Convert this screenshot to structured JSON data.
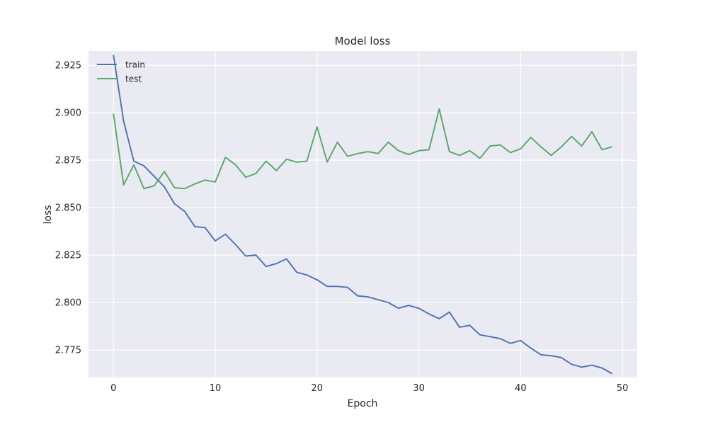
{
  "chart_data": {
    "type": "line",
    "title": "Model loss",
    "xlabel": "Epoch",
    "ylabel": "loss",
    "xlim": [
      -2.45,
      51.45
    ],
    "ylim": [
      2.7605,
      2.9325
    ],
    "x_ticks": [
      0,
      10,
      20,
      30,
      40,
      50
    ],
    "y_ticks": [
      2.775,
      2.8,
      2.825,
      2.85,
      2.875,
      2.9,
      2.925
    ],
    "grid": true,
    "legend_position": "top-left",
    "x": [
      0,
      1,
      2,
      3,
      4,
      5,
      6,
      7,
      8,
      9,
      10,
      11,
      12,
      13,
      14,
      15,
      16,
      17,
      18,
      19,
      20,
      21,
      22,
      23,
      24,
      25,
      26,
      27,
      28,
      29,
      30,
      31,
      32,
      33,
      34,
      35,
      36,
      37,
      38,
      39,
      40,
      41,
      42,
      43,
      44,
      45,
      46,
      47,
      48,
      49
    ],
    "series": [
      {
        "name": "train",
        "color": "#4c72b0",
        "values": [
          2.9305,
          2.8955,
          2.8745,
          2.872,
          2.8665,
          2.861,
          2.852,
          2.848,
          2.84,
          2.8395,
          2.8325,
          2.836,
          2.8305,
          2.8245,
          2.825,
          2.819,
          2.8205,
          2.823,
          2.816,
          2.8145,
          2.812,
          2.8085,
          2.8085,
          2.808,
          2.8035,
          2.803,
          2.8015,
          2.8,
          2.797,
          2.7985,
          2.797,
          2.794,
          2.7915,
          2.795,
          2.787,
          2.788,
          2.783,
          2.782,
          2.781,
          2.7785,
          2.78,
          2.776,
          2.7725,
          2.772,
          2.771,
          2.7675,
          2.766,
          2.767,
          2.7655,
          2.7625
        ]
      },
      {
        "name": "test",
        "color": "#55a868",
        "values": [
          2.8995,
          2.862,
          2.8725,
          2.86,
          2.8615,
          2.869,
          2.8605,
          2.86,
          2.8625,
          2.8645,
          2.8635,
          2.8765,
          2.8725,
          2.866,
          2.868,
          2.8745,
          2.8695,
          2.8755,
          2.874,
          2.8745,
          2.8925,
          2.874,
          2.8845,
          2.877,
          2.8785,
          2.8795,
          2.8785,
          2.8845,
          2.88,
          2.878,
          2.88,
          2.8805,
          2.902,
          2.8795,
          2.8775,
          2.88,
          2.876,
          2.8825,
          2.883,
          2.879,
          2.881,
          2.887,
          2.882,
          2.8775,
          2.882,
          2.8875,
          2.8825,
          2.89,
          2.8805,
          2.882
        ]
      }
    ]
  }
}
